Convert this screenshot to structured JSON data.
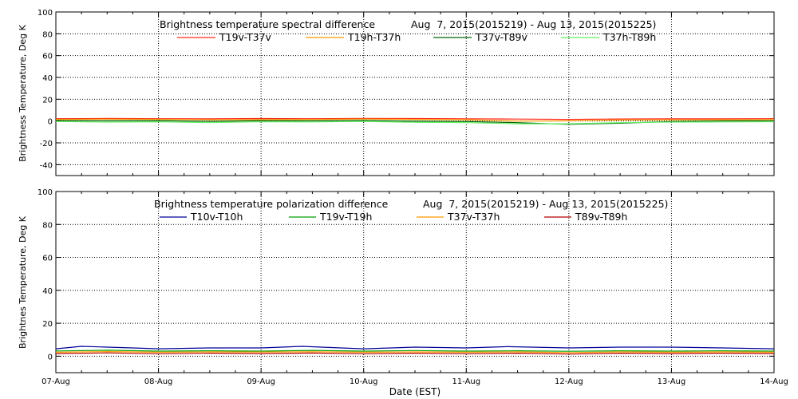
{
  "chart_data": [
    {
      "type": "line",
      "title": "Brightness temperature spectral difference",
      "date_range": "Aug  7, 2015(2015219) - Aug 13, 2015(2015225)",
      "ylabel": "Brightness Temperature, Deg K",
      "ylim": [
        -50,
        100
      ],
      "yticks": [
        -40,
        -20,
        0,
        20,
        40,
        60,
        80,
        100
      ],
      "xlim": [
        0,
        7
      ],
      "grid": true,
      "legend_position": "top",
      "series": [
        {
          "name": "T19v-T37v",
          "color": "#ff2a1a",
          "points": [
            [
              0,
              2.2
            ],
            [
              0.5,
              2.4
            ],
            [
              1,
              2.2
            ],
            [
              1.5,
              2
            ],
            [
              2,
              2.3
            ],
            [
              2.5,
              2.2
            ],
            [
              3,
              2.5
            ],
            [
              3.5,
              2.3
            ],
            [
              4,
              2.1
            ],
            [
              4.5,
              1.8
            ],
            [
              5,
              1.5
            ],
            [
              5.5,
              1.9
            ],
            [
              6,
              2
            ],
            [
              6.5,
              2
            ],
            [
              7,
              2.2
            ]
          ]
        },
        {
          "name": "T19h-T37h",
          "color": "#ff9a00",
          "points": [
            [
              0,
              1.5
            ],
            [
              0.5,
              1.7
            ],
            [
              1,
              1.6
            ],
            [
              1.5,
              1.2
            ],
            [
              2,
              1.4
            ],
            [
              2.5,
              1.5
            ],
            [
              3,
              1.8
            ],
            [
              3.5,
              1.5
            ],
            [
              4,
              1.2
            ],
            [
              4.5,
              0
            ],
            [
              5,
              0.2
            ],
            [
              5.5,
              0.9
            ],
            [
              6,
              1.1
            ],
            [
              6.5,
              1.2
            ],
            [
              7,
              1.4
            ]
          ]
        },
        {
          "name": "T37v-T89v",
          "color": "#006400",
          "points": [
            [
              0,
              0.5
            ],
            [
              0.5,
              0.2
            ],
            [
              1,
              0.4
            ],
            [
              1.5,
              -0.3
            ],
            [
              2,
              0.4
            ],
            [
              2.5,
              0.2
            ],
            [
              3,
              0.5
            ],
            [
              3.5,
              -0.2
            ],
            [
              4,
              -0.5
            ],
            [
              4.5,
              -1.5
            ],
            [
              5,
              -3
            ],
            [
              5.5,
              -2
            ],
            [
              6,
              -0.5
            ],
            [
              6.5,
              0.1
            ],
            [
              7,
              0.3
            ]
          ]
        },
        {
          "name": "T37h-T89h",
          "color": "#66ee66",
          "points": [
            [
              0,
              -0.5
            ],
            [
              0.5,
              -1
            ],
            [
              1,
              -0.7
            ],
            [
              1.5,
              -1.5
            ],
            [
              2,
              -0.6
            ],
            [
              2.5,
              -0.8
            ],
            [
              3,
              -0.3
            ],
            [
              3.5,
              -1.2
            ],
            [
              4,
              -1.4
            ],
            [
              4.5,
              -2.5
            ],
            [
              5,
              -2.5
            ],
            [
              5.5,
              -1.5
            ],
            [
              6,
              -1
            ],
            [
              6.5,
              -0.8
            ],
            [
              7,
              -0.6
            ]
          ]
        }
      ]
    },
    {
      "type": "line",
      "title": "Brightness temperature polarization difference",
      "date_range": "Aug  7, 2015(2015219) - Aug 13, 2015(2015225)",
      "ylabel": "Brightnes Temperature, Deg K",
      "xlabel": "Date (EST)",
      "ylim": [
        -10,
        100
      ],
      "yticks": [
        0,
        20,
        40,
        60,
        80,
        100
      ],
      "xlim": [
        0,
        7
      ],
      "xticklabels": [
        "07-Aug",
        "08-Aug",
        "09-Aug",
        "10-Aug",
        "11-Aug",
        "12-Aug",
        "13-Aug",
        "14-Aug"
      ],
      "grid": true,
      "legend_position": "top",
      "series": [
        {
          "name": "T10v-T10h",
          "color": "#000099",
          "points": [
            [
              0,
              4.5
            ],
            [
              0.25,
              6
            ],
            [
              0.5,
              5.5
            ],
            [
              0.75,
              5
            ],
            [
              1,
              4.5
            ],
            [
              1.5,
              5
            ],
            [
              2,
              5
            ],
            [
              2.4,
              6
            ],
            [
              3,
              4.5
            ],
            [
              3.5,
              5.5
            ],
            [
              4,
              5
            ],
            [
              4.4,
              5.8
            ],
            [
              5,
              5
            ],
            [
              5.5,
              5.5
            ],
            [
              6,
              5.5
            ],
            [
              6.5,
              5
            ],
            [
              7,
              4.5
            ]
          ]
        },
        {
          "name": "T19v-T19h",
          "color": "#00a000",
          "points": [
            [
              0,
              3.2
            ],
            [
              0.5,
              3.6
            ],
            [
              1,
              3.1
            ],
            [
              1.5,
              3.3
            ],
            [
              2,
              3.1
            ],
            [
              2.5,
              3.5
            ],
            [
              3,
              3.1
            ],
            [
              3.5,
              3.4
            ],
            [
              4,
              3.1
            ],
            [
              4.5,
              3.3
            ],
            [
              5,
              3
            ],
            [
              5.5,
              3.3
            ],
            [
              6,
              3.1
            ],
            [
              6.5,
              3.3
            ],
            [
              7,
              3.1
            ]
          ]
        },
        {
          "name": "T37v-T37h",
          "color": "#ff9a00",
          "points": [
            [
              0,
              2.4
            ],
            [
              0.5,
              2.8
            ],
            [
              1,
              2.4
            ],
            [
              1.5,
              2.6
            ],
            [
              2,
              2.5
            ],
            [
              2.5,
              2.7
            ],
            [
              3,
              2.4
            ],
            [
              3.5,
              2.6
            ],
            [
              4,
              2.4
            ],
            [
              4.5,
              2.6
            ],
            [
              5,
              2.2
            ],
            [
              5.5,
              2.6
            ],
            [
              6,
              2.4
            ],
            [
              6.5,
              2.6
            ],
            [
              7,
              2.4
            ]
          ]
        },
        {
          "name": "T89v-T89h",
          "color": "#b00000",
          "points": [
            [
              0,
              1.6
            ],
            [
              0.5,
              2
            ],
            [
              1,
              1.5
            ],
            [
              1.5,
              1.8
            ],
            [
              2,
              1.6
            ],
            [
              2.5,
              1.9
            ],
            [
              3,
              1.5
            ],
            [
              3.5,
              1.8
            ],
            [
              4,
              1.5
            ],
            [
              4.5,
              1.8
            ],
            [
              5,
              1.3
            ],
            [
              5.5,
              1.8
            ],
            [
              6,
              1.6
            ],
            [
              6.5,
              1.8
            ],
            [
              7,
              1.6
            ]
          ]
        }
      ]
    }
  ]
}
